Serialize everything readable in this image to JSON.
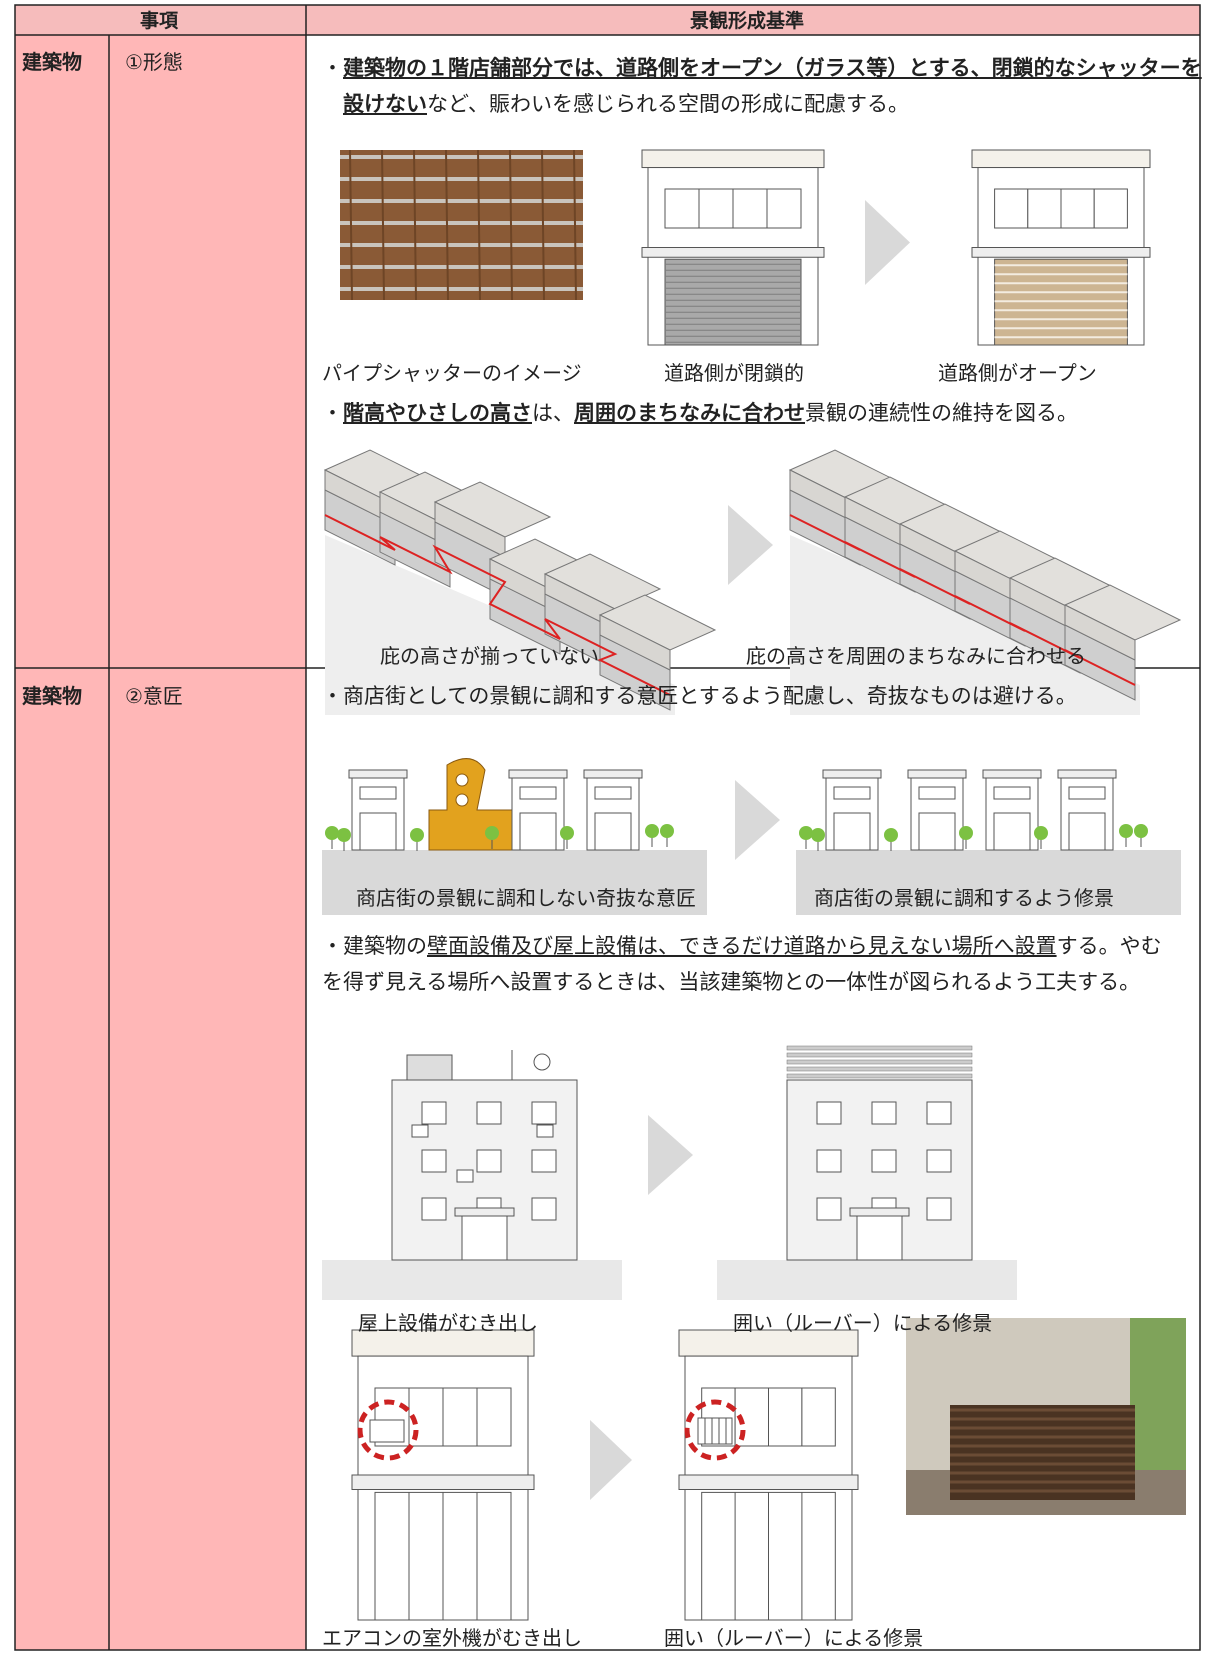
{
  "header": {
    "item": "事項",
    "standard": "景観形成基準"
  },
  "rows": [
    {
      "category": "建築物",
      "item": "①形態",
      "bullets": [
        {
          "segments": [
            {
              "text": "・"
            },
            {
              "text": "建築物の１階店舗部分では、道路側をオープン（ガラス等）とする、閉鎖的なシャッターを設けない",
              "style": "bold-underline"
            },
            {
              "text": "など、賑わいを感じられる空間の形成に配慮する。"
            }
          ]
        },
        {
          "segments": [
            {
              "text": "・"
            },
            {
              "text": "階高やひさしの高さ",
              "style": "bold-underline"
            },
            {
              "text": "は、"
            },
            {
              "text": "周囲のまちなみに合わせ",
              "style": "bold-underline"
            },
            {
              "text": "景観の連続性の維持を図る。"
            }
          ]
        }
      ],
      "captions": [
        "パイプシャッターのイメージ",
        "道路側が閉鎖的",
        "道路側がオープン",
        "庇の高さが揃っていない",
        "庇の高さを周囲のまちなみに合わせる"
      ]
    },
    {
      "category": "建築物",
      "item": "②意匠",
      "bullets": [
        {
          "segments": [
            {
              "text": "・商店街としての景観に調和する意匠とするよう配慮し、奇抜なものは避ける。"
            }
          ]
        },
        {
          "segments": [
            {
              "text": "・建築物の"
            },
            {
              "text": "壁面設備及び屋上設備は、できるだけ道路から見えない場所へ設置",
              "style": "underline"
            },
            {
              "text": "する。やむを得ず見える場所へ設置するときは、当該建築物との一体性が図られるよう工夫する。"
            }
          ]
        }
      ],
      "captions": [
        "商店街の景観に調和しない奇抜な意匠",
        "商店街の景観に調和するよう修景",
        "屋上設備がむき出し",
        "囲い（ルーバー）による修景",
        "エアコンの室外機がむき出し",
        "囲い（ルーバー）による修景"
      ]
    }
  ]
}
